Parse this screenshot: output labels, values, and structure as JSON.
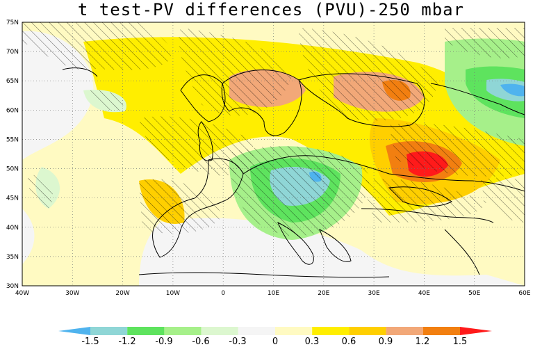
{
  "title": "t test-PV differences (PVU)-250 mbar",
  "map": {
    "lon_ticks": [
      "40W",
      "30W",
      "20W",
      "10W",
      "0",
      "10E",
      "20E",
      "30E",
      "40E",
      "50E",
      "60E"
    ],
    "lat_ticks": [
      "75N",
      "70N",
      "65N",
      "60N",
      "55N",
      "50N",
      "45N",
      "40N",
      "35N",
      "30N"
    ],
    "lon_range": [
      -40,
      60
    ],
    "lat_range": [
      30,
      75
    ],
    "grid": "dotted"
  },
  "colorbar": {
    "labels": [
      "-1.5",
      "-1.2",
      "-0.9",
      "-0.6",
      "-0.3",
      "0",
      "0.3",
      "0.6",
      "0.9",
      "1.2",
      "1.5"
    ],
    "colors": [
      "#4fb3ee",
      "#8fd6d6",
      "#5ee35e",
      "#a6f08a",
      "#dcf7cf",
      "#f5f5f5",
      "#fffac2",
      "#ffee00",
      "#ffcf00",
      "#f2a878",
      "#f27f10",
      "#ff1a1a"
    ]
  }
}
